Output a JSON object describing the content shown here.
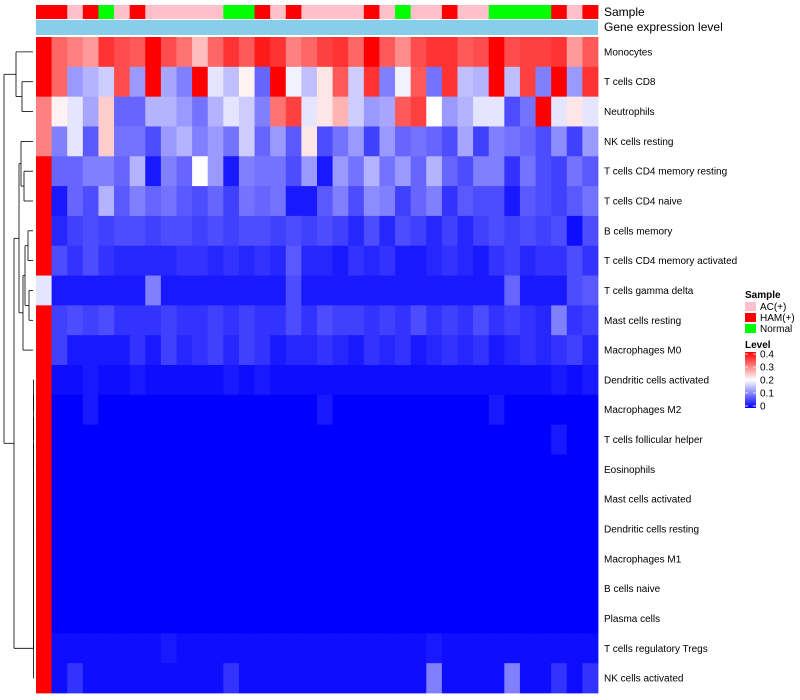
{
  "chart_data": {
    "type": "heatmap",
    "title": "",
    "annotations": [
      {
        "name": "Sample",
        "type": "categorical"
      },
      {
        "name": "Gene expression level",
        "type": "continuous"
      }
    ],
    "sample_groups": [
      "HAM(+)",
      "HAM(+)",
      "AC(+)",
      "HAM(+)",
      "Normal",
      "AC(+)",
      "HAM(+)",
      "AC(+)",
      "AC(+)",
      "AC(+)",
      "AC(+)",
      "AC(+)",
      "Normal",
      "Normal",
      "HAM(+)",
      "AC(+)",
      "HAM(+)",
      "AC(+)",
      "AC(+)",
      "AC(+)",
      "AC(+)",
      "HAM(+)",
      "AC(+)",
      "Normal",
      "AC(+)",
      "AC(+)",
      "HAM(+)",
      "AC(+)",
      "AC(+)",
      "Normal",
      "Normal",
      "Normal",
      "Normal",
      "HAM(+)",
      "AC(+)",
      "HAM(+)"
    ],
    "rows": [
      "Monocytes",
      "T cells CD8",
      "Neutrophils",
      "NK cells resting",
      "T cells CD4 memory resting",
      "T cells CD4 naive",
      "B cells memory",
      "T cells CD4 memory activated",
      "T cells gamma delta",
      "Mast cells resting",
      "Macrophages M0",
      "Dendritic cells activated",
      "Macrophages M2",
      "T cells follicular helper",
      "Eosinophils",
      "Mast cells activated",
      "Dendritic cells resting",
      "Macrophages M1",
      "B cells naive",
      "Plasma cells",
      "T cells regulatory  Tregs",
      "NK cells activated"
    ],
    "values": [
      [
        0.4,
        0.32,
        0.3,
        0.28,
        0.36,
        0.34,
        0.33,
        0.4,
        0.34,
        0.31,
        0.25,
        0.32,
        0.36,
        0.33,
        0.38,
        0.36,
        0.3,
        0.32,
        0.35,
        0.36,
        0.32,
        0.4,
        0.33,
        0.29,
        0.34,
        0.36,
        0.36,
        0.33,
        0.34,
        0.4,
        0.34,
        0.35,
        0.35,
        0.36,
        0.28,
        0.33
      ],
      [
        0.4,
        0.32,
        0.12,
        0.14,
        0.16,
        0.34,
        0.12,
        0.4,
        0.13,
        0.1,
        0.4,
        0.18,
        0.15,
        0.21,
        0.08,
        0.4,
        0.19,
        0.15,
        0.22,
        0.33,
        0.16,
        0.36,
        0.1,
        0.19,
        0.33,
        0.09,
        0.36,
        0.15,
        0.14,
        0.4,
        0.15,
        0.35,
        0.1,
        0.4,
        0.12,
        0.36
      ],
      [
        0.3,
        0.21,
        0.18,
        0.13,
        0.24,
        0.08,
        0.08,
        0.14,
        0.14,
        0.12,
        0.09,
        0.14,
        0.18,
        0.16,
        0.1,
        0.31,
        0.35,
        0.18,
        0.22,
        0.26,
        0.16,
        0.12,
        0.13,
        0.33,
        0.35,
        0.2,
        0.12,
        0.14,
        0.18,
        0.18,
        0.06,
        0.09,
        0.4,
        0.18,
        0.22,
        0.18
      ],
      [
        0.3,
        0.1,
        0.18,
        0.07,
        0.24,
        0.09,
        0.09,
        0.06,
        0.12,
        0.14,
        0.1,
        0.12,
        0.09,
        0.16,
        0.08,
        0.12,
        0.07,
        0.22,
        0.06,
        0.09,
        0.12,
        0.05,
        0.12,
        0.08,
        0.09,
        0.08,
        0.06,
        0.13,
        0.05,
        0.1,
        0.09,
        0.08,
        0.06,
        0.11,
        0.05,
        0.12
      ],
      [
        0.4,
        0.08,
        0.08,
        0.1,
        0.1,
        0.08,
        0.14,
        0.02,
        0.1,
        0.08,
        0.2,
        0.12,
        0.02,
        0.1,
        0.09,
        0.09,
        0.06,
        0.12,
        0.02,
        0.12,
        0.09,
        0.14,
        0.09,
        0.12,
        0.08,
        0.14,
        0.08,
        0.06,
        0.1,
        0.1,
        0.04,
        0.09,
        0.06,
        0.05,
        0.09,
        0.07
      ],
      [
        0.4,
        0.02,
        0.08,
        0.06,
        0.14,
        0.07,
        0.1,
        0.08,
        0.09,
        0.07,
        0.06,
        0.08,
        0.05,
        0.09,
        0.08,
        0.09,
        0.02,
        0.02,
        0.07,
        0.1,
        0.06,
        0.11,
        0.1,
        0.05,
        0.08,
        0.1,
        0.04,
        0.07,
        0.06,
        0.06,
        0.02,
        0.07,
        0.06,
        0.05,
        0.07,
        0.09
      ],
      [
        0.4,
        0.03,
        0.05,
        0.06,
        0.05,
        0.06,
        0.06,
        0.05,
        0.06,
        0.06,
        0.05,
        0.06,
        0.05,
        0.06,
        0.06,
        0.05,
        0.06,
        0.05,
        0.06,
        0.05,
        0.03,
        0.06,
        0.03,
        0.06,
        0.05,
        0.03,
        0.05,
        0.03,
        0.05,
        0.06,
        0.05,
        0.06,
        0.05,
        0.06,
        0.01,
        0.06
      ],
      [
        0.4,
        0.06,
        0.04,
        0.06,
        0.04,
        0.03,
        0.03,
        0.03,
        0.03,
        0.04,
        0.04,
        0.03,
        0.04,
        0.03,
        0.04,
        0.03,
        0.07,
        0.03,
        0.03,
        0.02,
        0.04,
        0.03,
        0.04,
        0.02,
        0.02,
        0.03,
        0.04,
        0.03,
        0.02,
        0.04,
        0.05,
        0.03,
        0.04,
        0.04,
        0.06,
        0.04
      ],
      [
        0.18,
        0.02,
        0.02,
        0.02,
        0.02,
        0.02,
        0.02,
        0.1,
        0.02,
        0.02,
        0.02,
        0.02,
        0.02,
        0.02,
        0.02,
        0.02,
        0.06,
        0.02,
        0.02,
        0.02,
        0.02,
        0.02,
        0.02,
        0.02,
        0.02,
        0.02,
        0.02,
        0.02,
        0.02,
        0.02,
        0.08,
        0.02,
        0.02,
        0.02,
        0.06,
        0.07
      ],
      [
        0.4,
        0.05,
        0.06,
        0.05,
        0.06,
        0.04,
        0.04,
        0.04,
        0.05,
        0.04,
        0.04,
        0.05,
        0.04,
        0.05,
        0.04,
        0.04,
        0.06,
        0.04,
        0.06,
        0.05,
        0.05,
        0.04,
        0.05,
        0.04,
        0.06,
        0.04,
        0.05,
        0.04,
        0.06,
        0.04,
        0.05,
        0.04,
        0.03,
        0.1,
        0.04,
        0.05
      ],
      [
        0.4,
        0.05,
        0.02,
        0.02,
        0.02,
        0.02,
        0.04,
        0.02,
        0.05,
        0.03,
        0.04,
        0.05,
        0.03,
        0.05,
        0.04,
        0.02,
        0.03,
        0.03,
        0.04,
        0.03,
        0.02,
        0.04,
        0.03,
        0.04,
        0.02,
        0.03,
        0.04,
        0.03,
        0.04,
        0.02,
        0.03,
        0.04,
        0.03,
        0.04,
        0.05,
        0.03
      ],
      [
        0.4,
        0.01,
        0.01,
        0.02,
        0.01,
        0.01,
        0.02,
        0.01,
        0.01,
        0.01,
        0.01,
        0.01,
        0.02,
        0.01,
        0.02,
        0.01,
        0.01,
        0.01,
        0.01,
        0.01,
        0.01,
        0.01,
        0.01,
        0.01,
        0.01,
        0.01,
        0.01,
        0.01,
        0.01,
        0.01,
        0.01,
        0.01,
        0.01,
        0.02,
        0.01,
        0.02
      ],
      [
        0.4,
        0.0,
        0.0,
        0.02,
        0.0,
        0.0,
        0.0,
        0.0,
        0.0,
        0.0,
        0.0,
        0.0,
        0.0,
        0.0,
        0.0,
        0.0,
        0.0,
        0.0,
        0.02,
        0.0,
        0.0,
        0.0,
        0.0,
        0.0,
        0.0,
        0.0,
        0.0,
        0.0,
        0.0,
        0.02,
        0.0,
        0.0,
        0.0,
        0.0,
        0.0,
        0.0
      ],
      [
        0.4,
        0.0,
        0.0,
        0.0,
        0.0,
        0.0,
        0.0,
        0.0,
        0.0,
        0.0,
        0.0,
        0.0,
        0.0,
        0.0,
        0.0,
        0.0,
        0.0,
        0.0,
        0.0,
        0.0,
        0.0,
        0.0,
        0.0,
        0.0,
        0.0,
        0.0,
        0.0,
        0.0,
        0.0,
        0.0,
        0.0,
        0.0,
        0.0,
        0.02,
        0.0,
        0.0
      ],
      [
        0.4,
        0.0,
        0.0,
        0.0,
        0.0,
        0.0,
        0.0,
        0.0,
        0.0,
        0.0,
        0.0,
        0.0,
        0.0,
        0.0,
        0.0,
        0.0,
        0.0,
        0.0,
        0.0,
        0.0,
        0.0,
        0.0,
        0.0,
        0.0,
        0.0,
        0.0,
        0.0,
        0.0,
        0.0,
        0.0,
        0.0,
        0.0,
        0.0,
        0.0,
        0.0,
        0.0
      ],
      [
        0.4,
        0.0,
        0.0,
        0.0,
        0.0,
        0.0,
        0.0,
        0.0,
        0.0,
        0.0,
        0.0,
        0.0,
        0.0,
        0.0,
        0.0,
        0.0,
        0.0,
        0.0,
        0.0,
        0.0,
        0.0,
        0.0,
        0.0,
        0.0,
        0.0,
        0.0,
        0.0,
        0.0,
        0.0,
        0.0,
        0.0,
        0.0,
        0.0,
        0.0,
        0.0,
        0.0
      ],
      [
        0.4,
        0.0,
        0.0,
        0.0,
        0.0,
        0.0,
        0.0,
        0.0,
        0.0,
        0.0,
        0.0,
        0.0,
        0.0,
        0.0,
        0.0,
        0.0,
        0.0,
        0.0,
        0.0,
        0.0,
        0.0,
        0.0,
        0.0,
        0.0,
        0.0,
        0.0,
        0.0,
        0.0,
        0.0,
        0.0,
        0.0,
        0.0,
        0.0,
        0.0,
        0.0,
        0.0
      ],
      [
        0.4,
        0.0,
        0.0,
        0.0,
        0.0,
        0.0,
        0.0,
        0.0,
        0.0,
        0.0,
        0.0,
        0.0,
        0.0,
        0.0,
        0.0,
        0.0,
        0.0,
        0.0,
        0.0,
        0.0,
        0.0,
        0.0,
        0.0,
        0.0,
        0.0,
        0.0,
        0.0,
        0.0,
        0.0,
        0.0,
        0.0,
        0.0,
        0.0,
        0.0,
        0.0,
        0.0
      ],
      [
        0.4,
        0.0,
        0.0,
        0.0,
        0.0,
        0.0,
        0.0,
        0.0,
        0.0,
        0.0,
        0.0,
        0.0,
        0.0,
        0.0,
        0.0,
        0.0,
        0.0,
        0.0,
        0.0,
        0.0,
        0.0,
        0.0,
        0.0,
        0.0,
        0.0,
        0.0,
        0.0,
        0.0,
        0.0,
        0.0,
        0.0,
        0.0,
        0.0,
        0.0,
        0.0,
        0.0
      ],
      [
        0.4,
        0.0,
        0.0,
        0.0,
        0.0,
        0.0,
        0.0,
        0.0,
        0.0,
        0.0,
        0.0,
        0.0,
        0.0,
        0.0,
        0.0,
        0.0,
        0.0,
        0.0,
        0.0,
        0.0,
        0.0,
        0.0,
        0.0,
        0.0,
        0.0,
        0.0,
        0.0,
        0.0,
        0.0,
        0.0,
        0.0,
        0.0,
        0.0,
        0.0,
        0.0,
        0.0
      ],
      [
        0.4,
        0.01,
        0.01,
        0.01,
        0.01,
        0.01,
        0.01,
        0.01,
        0.02,
        0.01,
        0.01,
        0.01,
        0.01,
        0.01,
        0.01,
        0.01,
        0.01,
        0.01,
        0.01,
        0.01,
        0.01,
        0.01,
        0.01,
        0.01,
        0.01,
        0.02,
        0.01,
        0.01,
        0.01,
        0.01,
        0.01,
        0.01,
        0.01,
        0.01,
        0.01,
        0.01
      ],
      [
        0.4,
        0.01,
        0.04,
        0.01,
        0.01,
        0.01,
        0.01,
        0.01,
        0.01,
        0.01,
        0.01,
        0.01,
        0.04,
        0.01,
        0.01,
        0.01,
        0.01,
        0.01,
        0.01,
        0.01,
        0.01,
        0.01,
        0.01,
        0.01,
        0.01,
        0.1,
        0.01,
        0.01,
        0.01,
        0.01,
        0.1,
        0.01,
        0.01,
        0.04,
        0.01,
        0.04
      ]
    ],
    "legend": {
      "sample_title": "Sample",
      "sample_entries": [
        {
          "label": "AC(+)",
          "color": "#FFC0CB"
        },
        {
          "label": "HAM(+)",
          "color": "#FF0000"
        },
        {
          "label": "Normal",
          "color": "#00FF00"
        }
      ],
      "level_title": "Level",
      "level_ticks": [
        "0.4",
        "0.3",
        "0.2",
        "0.1",
        "0"
      ],
      "level_range": [
        0,
        0.4
      ]
    },
    "colors": {
      "low": "#0000FF",
      "mid": "#FFFFFF",
      "high": "#FF0000",
      "gene_expression_bar": "#87CEEB"
    }
  }
}
